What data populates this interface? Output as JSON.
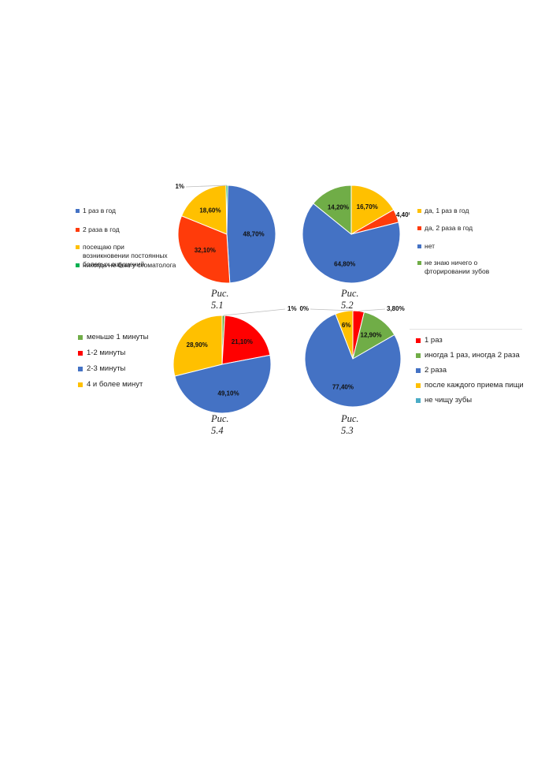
{
  "chart_data": [
    {
      "type": "pie",
      "caption": "Рис. 5.1",
      "slices": [
        {
          "label": "1 раз в год",
          "value": 48.7,
          "text": "48,70%",
          "color": "#4472C4"
        },
        {
          "label": "2 раза в год",
          "value": 32.1,
          "text": "32,10%",
          "color": "#FF3B0A"
        },
        {
          "label": "посещаю при возникновении постоянных болевых ощущений",
          "value": 18.6,
          "text": "18,60%",
          "color": "#FFC000"
        },
        {
          "label": "никогда не был у стоматолога",
          "value": 0.6,
          "text": "1%",
          "color": "#00B050"
        }
      ],
      "legend_placement": "left"
    },
    {
      "type": "pie",
      "caption": "Рис. 5.2",
      "slices": [
        {
          "label": "да, 1 раз в год",
          "value": 16.7,
          "text": "16,70%",
          "color": "#FFC000"
        },
        {
          "label": "да, 2 раза в год",
          "value": 4.4,
          "text": "4,40%",
          "color": "#FF3B0A"
        },
        {
          "label": "нет",
          "value": 64.8,
          "text": "64,80%",
          "color": "#4472C4"
        },
        {
          "label": "не знаю ничего о фторировании зубов",
          "value": 14.2,
          "text": "14,20%",
          "color": "#70AD47"
        }
      ],
      "legend_placement": "right"
    },
    {
      "type": "pie",
      "caption": "Рис. 5.4",
      "slices": [
        {
          "label": "меньше 1 минуты",
          "value": 0.9,
          "text": "1%",
          "color": "#70AD47"
        },
        {
          "label": "1-2 минуты",
          "value": 21.1,
          "text": "21,10%",
          "color": "#FF0000"
        },
        {
          "label": "2-3 минуты",
          "value": 49.1,
          "text": "49,10%",
          "color": "#4472C4"
        },
        {
          "label": "4 и более минут",
          "value": 28.9,
          "text": "28,90%",
          "color": "#FFC000"
        }
      ],
      "legend_placement": "left"
    },
    {
      "type": "pie",
      "caption": "Рис. 5.3",
      "slices": [
        {
          "label": "1 раз",
          "value": 3.8,
          "text": "3,80%",
          "color": "#FF0000"
        },
        {
          "label": "иногда 1 раз, иногда 2 раза",
          "value": 12.9,
          "text": "12,90%",
          "color": "#70AD47"
        },
        {
          "label": "2 раза",
          "value": 77.4,
          "text": "77,40%",
          "color": "#4472C4"
        },
        {
          "label": "после каждого приема пищи",
          "value": 5.9,
          "text": "6%",
          "color": "#FFC000"
        },
        {
          "label": "не чищу зубы",
          "value": 0.0,
          "text": "0%",
          "color": "#4BACC6"
        }
      ],
      "legend_placement": "right"
    }
  ]
}
